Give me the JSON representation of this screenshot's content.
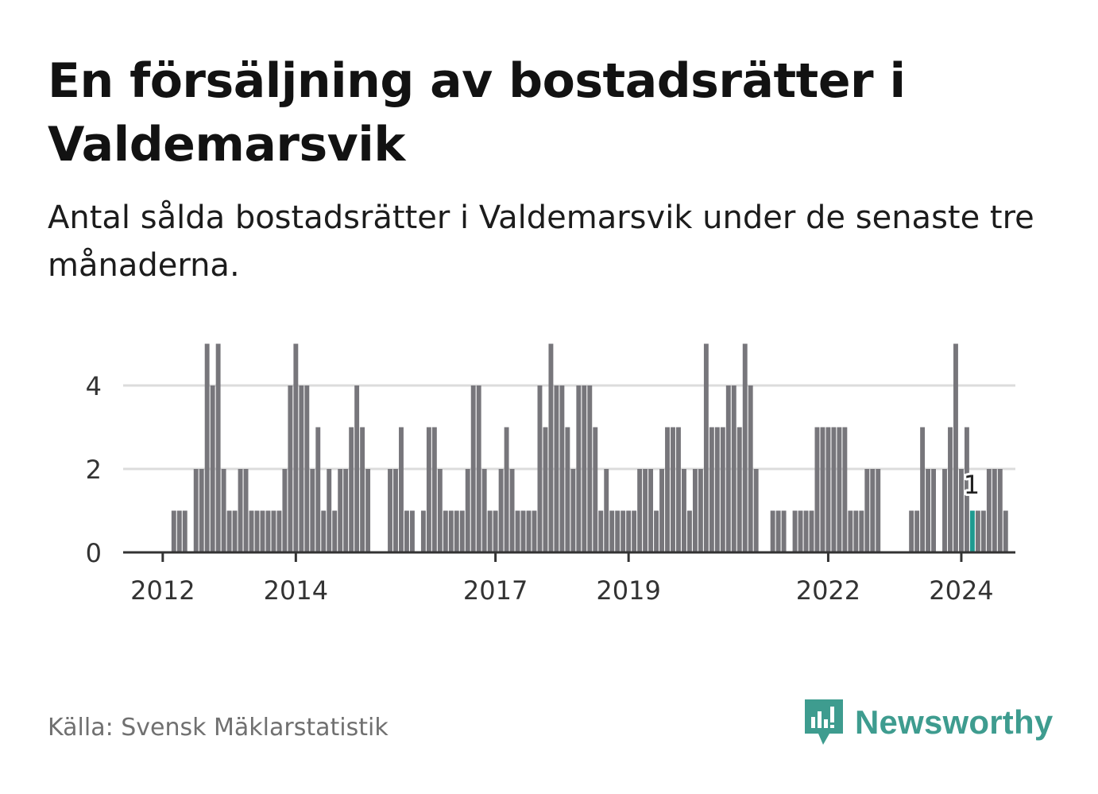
{
  "title": "En försäljning av bostadsrätter i Valdemarsvik",
  "subtitle": "Antal sålda bostadsrätter i Valdemarsvik under de senaste tre månaderna.",
  "source": "Källa: Svensk Mäklarstatistik",
  "brand": {
    "name": "Newsworthy",
    "icon": "newsworthy-logo-icon",
    "color": "#3e9c8f"
  },
  "chart_data": {
    "type": "bar",
    "title": "En försäljning av bostadsrätter i Valdemarsvik",
    "xlabel": "",
    "ylabel": "",
    "ylim": [
      0,
      5
    ],
    "yticks": [
      0,
      2,
      4
    ],
    "grid": true,
    "bar_color": "#77767b",
    "highlight_color": "#1e9a90",
    "start": "2011-07",
    "x_ticks": [
      {
        "label": "2012",
        "index": 6
      },
      {
        "label": "2014",
        "index": 30
      },
      {
        "label": "2017",
        "index": 66
      },
      {
        "label": "2019",
        "index": 90
      },
      {
        "label": "2022",
        "index": 126
      },
      {
        "label": "2024",
        "index": 150
      }
    ],
    "values": [
      0,
      0,
      0,
      0,
      0,
      0,
      0,
      0,
      1,
      1,
      1,
      0,
      2,
      2,
      5,
      4,
      5,
      2,
      1,
      1,
      2,
      2,
      1,
      1,
      1,
      1,
      1,
      1,
      2,
      4,
      5,
      4,
      4,
      2,
      3,
      1,
      2,
      1,
      2,
      2,
      3,
      4,
      3,
      2,
      0,
      0,
      0,
      2,
      2,
      3,
      1,
      1,
      0,
      1,
      3,
      3,
      2,
      1,
      1,
      1,
      1,
      2,
      4,
      4,
      2,
      1,
      1,
      2,
      3,
      2,
      1,
      1,
      1,
      1,
      4,
      3,
      5,
      4,
      4,
      3,
      2,
      4,
      4,
      4,
      3,
      1,
      2,
      1,
      1,
      1,
      1,
      1,
      2,
      2,
      2,
      1,
      2,
      3,
      3,
      3,
      2,
      1,
      2,
      2,
      5,
      3,
      3,
      3,
      4,
      4,
      3,
      5,
      4,
      2,
      0,
      0,
      1,
      1,
      1,
      0,
      1,
      1,
      1,
      1,
      3,
      3,
      3,
      3,
      3,
      3,
      1,
      1,
      1,
      2,
      2,
      2,
      0,
      0,
      0,
      0,
      0,
      1,
      1,
      3,
      2,
      2,
      0,
      2,
      3,
      5,
      2,
      3,
      1,
      1,
      1,
      2,
      2,
      2,
      1
    ],
    "highlight_index": 152,
    "annotation": {
      "label": "1",
      "index": 152
    }
  }
}
